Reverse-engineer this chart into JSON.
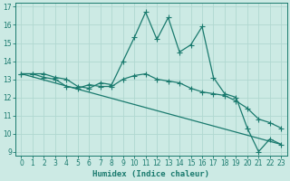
{
  "xlabel": "Humidex (Indice chaleur)",
  "bg_color": "#cceae4",
  "line_color": "#1a7a6e",
  "grid_color": "#b0d8d0",
  "xlim": [
    -0.5,
    23.5
  ],
  "ylim": [
    8.8,
    17.2
  ],
  "xticks": [
    0,
    1,
    2,
    3,
    4,
    5,
    6,
    7,
    8,
    9,
    10,
    11,
    12,
    13,
    14,
    15,
    16,
    17,
    18,
    19,
    20,
    21,
    22,
    23
  ],
  "yticks": [
    9,
    10,
    11,
    12,
    13,
    14,
    15,
    16,
    17
  ],
  "line1_x": [
    0,
    1,
    2,
    3,
    4,
    5,
    6,
    7,
    8,
    9,
    10,
    11,
    12,
    13,
    14,
    15,
    16,
    17,
    18,
    19,
    20,
    21,
    22,
    23
  ],
  "line1_y": [
    13.3,
    13.3,
    13.1,
    13.0,
    12.6,
    12.5,
    12.7,
    12.6,
    12.6,
    13.0,
    13.2,
    13.3,
    13.0,
    12.9,
    12.8,
    12.5,
    12.3,
    12.2,
    12.1,
    11.8,
    11.4,
    10.8,
    10.6,
    10.3
  ],
  "line2_x": [
    0,
    1,
    2,
    3,
    4,
    5,
    6,
    7,
    8,
    9,
    10,
    11,
    12,
    13,
    14,
    15,
    16,
    17,
    18,
    19,
    20,
    21,
    22,
    23
  ],
  "line2_y": [
    13.3,
    13.3,
    13.3,
    13.1,
    13.0,
    12.6,
    12.5,
    12.8,
    12.7,
    14.0,
    15.3,
    16.7,
    15.2,
    16.4,
    14.5,
    14.9,
    15.9,
    13.1,
    12.2,
    12.0,
    10.3,
    9.0,
    9.7,
    9.4
  ],
  "line3_x": [
    0,
    23
  ],
  "line3_y": [
    13.3,
    9.4
  ]
}
